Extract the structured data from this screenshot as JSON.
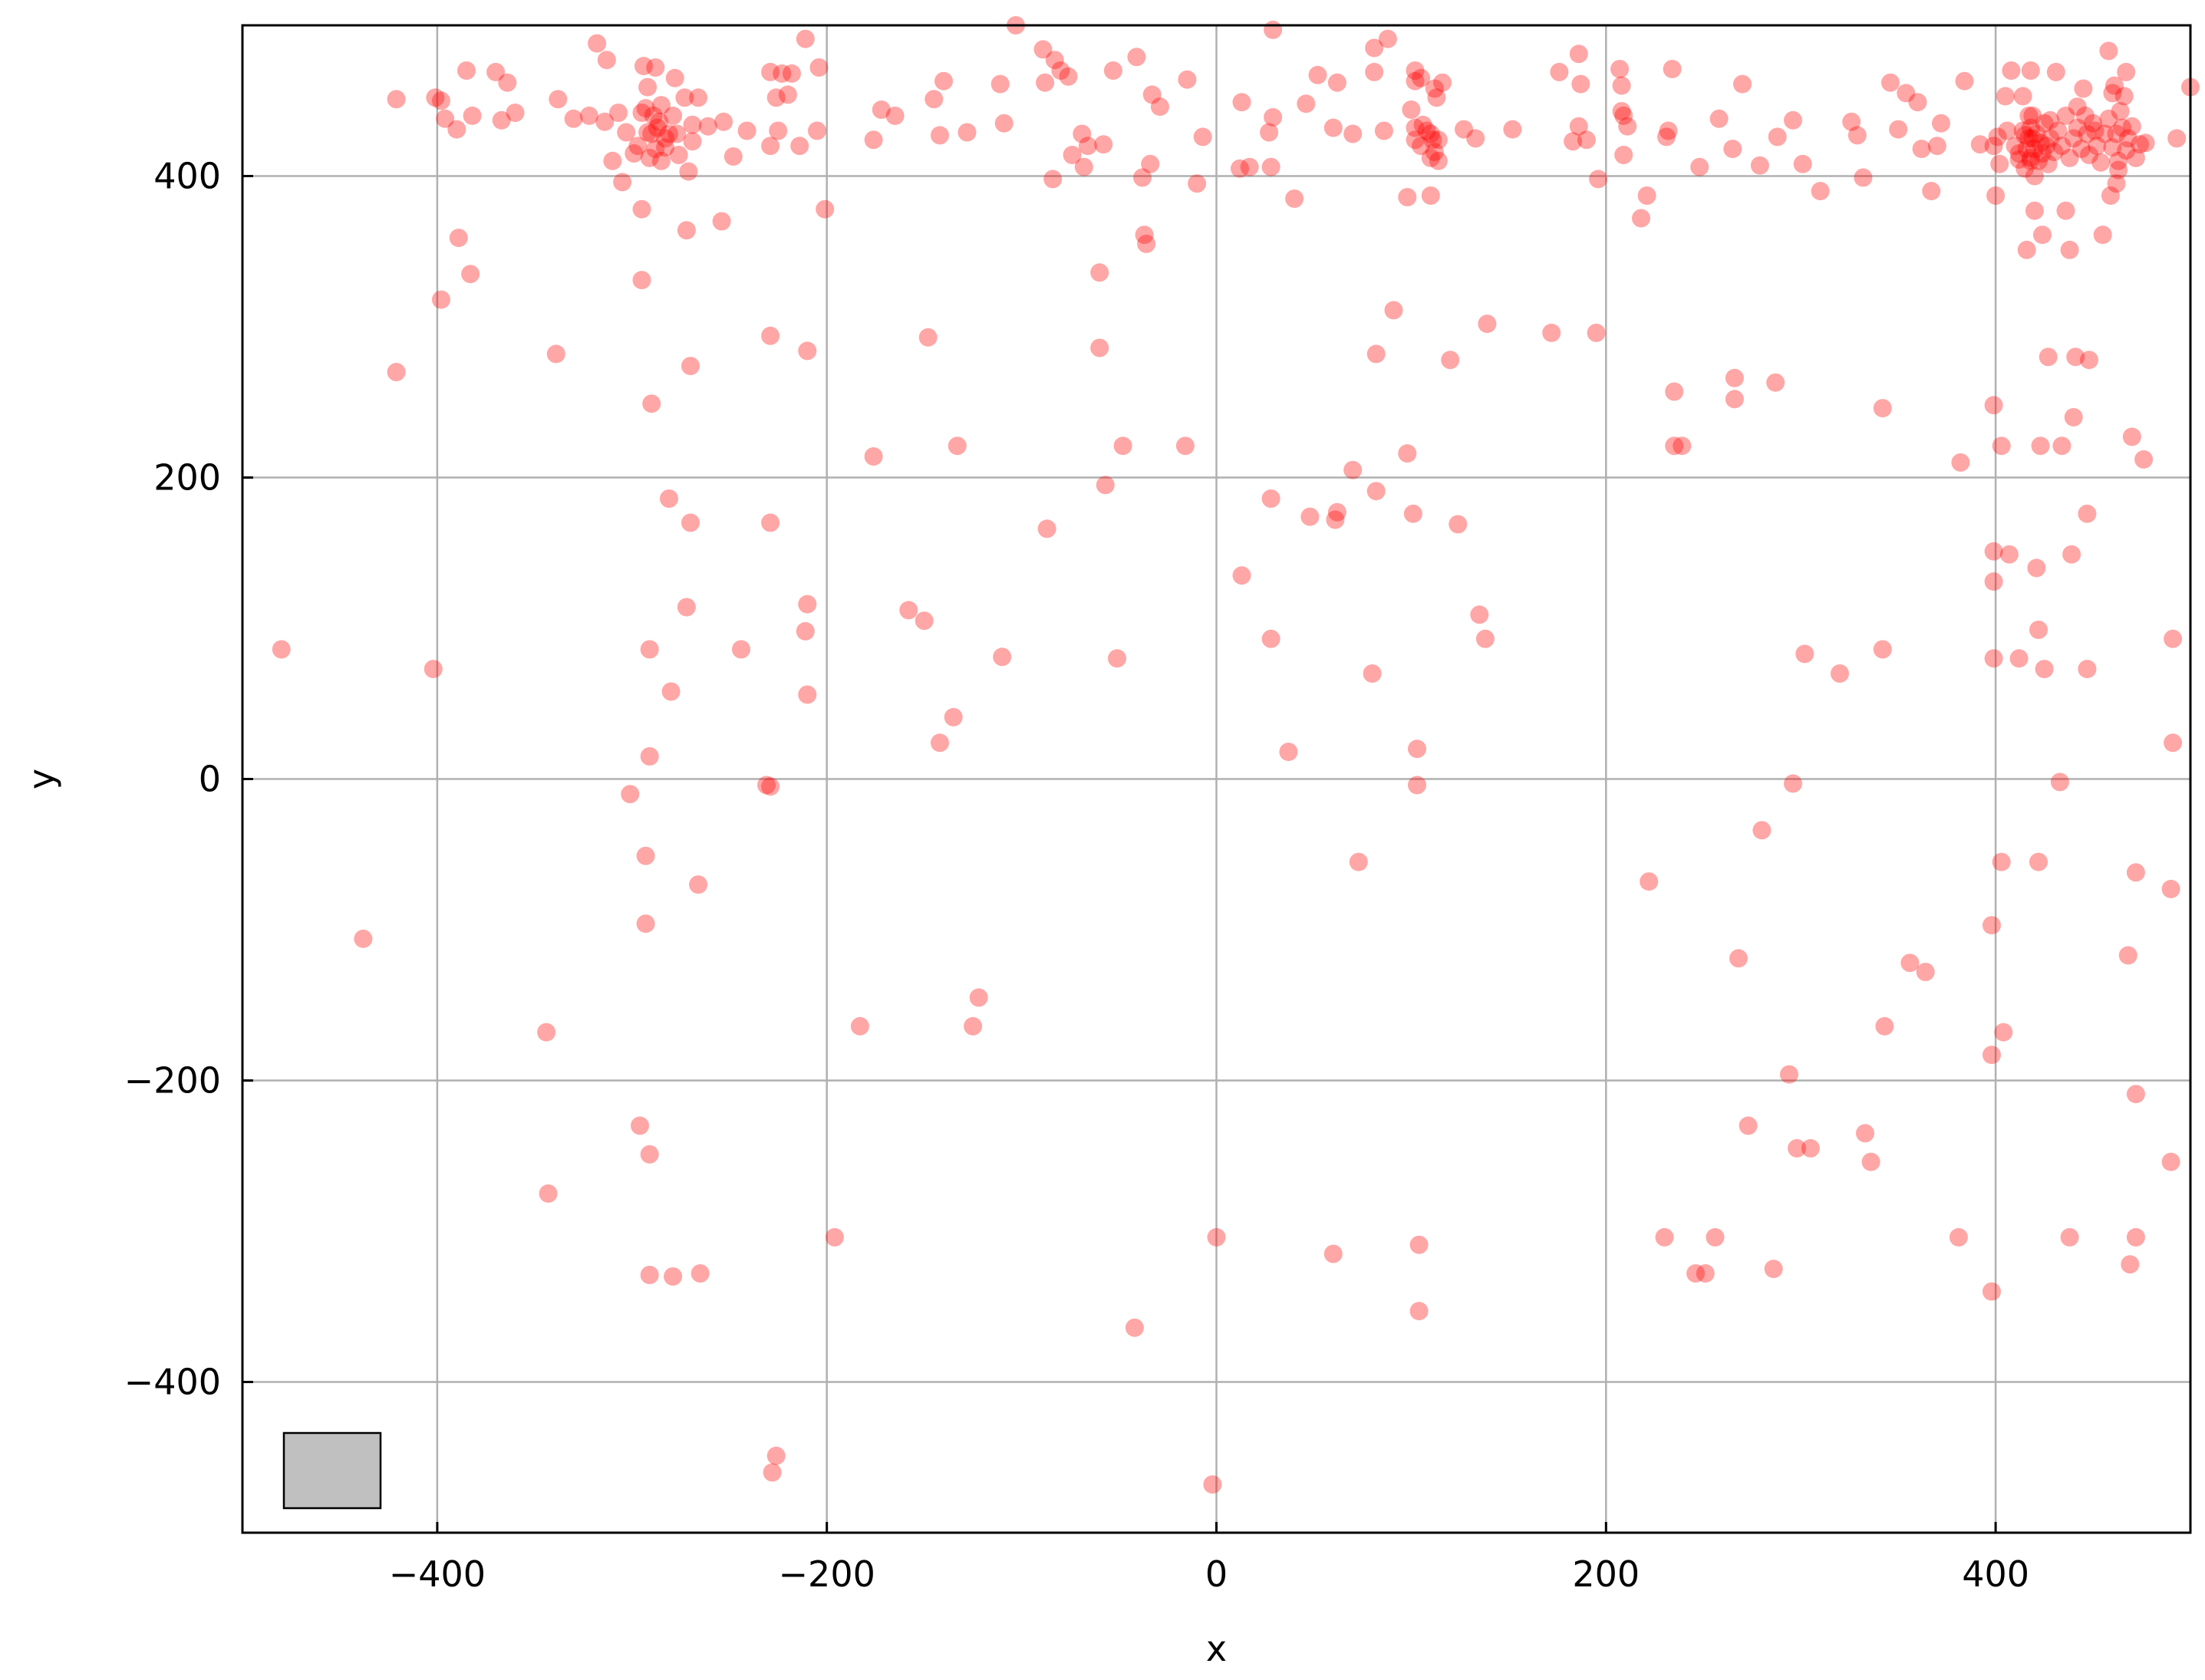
{
  "chart_data": {
    "type": "scatter",
    "xlabel": "x",
    "ylabel": "y",
    "xlim": [
      -500,
      500
    ],
    "ylim": [
      -500,
      500
    ],
    "xticks": [
      -400,
      -200,
      0,
      200,
      400
    ],
    "yticks": [
      -400,
      -200,
      0,
      200,
      400
    ],
    "xtick_labels": [
      "−400",
      "−200",
      "0",
      "200",
      "400"
    ],
    "ytick_labels": [
      "−400",
      "−200",
      "0",
      "200",
      "400"
    ],
    "grid": true,
    "marker_color": "#ff0000",
    "marker_opacity": 0.35,
    "legend": "bottom-left",
    "legend_box_color": "#c0c0c0",
    "points": [
      [
        -480,
        86
      ],
      [
        -438,
        -106
      ],
      [
        -421,
        270
      ],
      [
        -421,
        451
      ],
      [
        -402,
        73
      ],
      [
        -401,
        452
      ],
      [
        -398,
        318
      ],
      [
        -398,
        450
      ],
      [
        -396,
        438
      ],
      [
        -390,
        431
      ],
      [
        -389,
        359
      ],
      [
        -385,
        470
      ],
      [
        -383,
        335
      ],
      [
        -382,
        440
      ],
      [
        -370,
        469
      ],
      [
        -367,
        437
      ],
      [
        -364,
        462
      ],
      [
        -360,
        442
      ],
      [
        -344,
        -168
      ],
      [
        -343,
        -275
      ],
      [
        -339,
        282
      ],
      [
        -338,
        451
      ],
      [
        -330,
        438
      ],
      [
        -322,
        440
      ],
      [
        -318,
        488
      ],
      [
        -314,
        436
      ],
      [
        -313,
        477
      ],
      [
        -310,
        410
      ],
      [
        -307,
        442
      ],
      [
        -305,
        396
      ],
      [
        -303,
        429
      ],
      [
        -301,
        -10
      ],
      [
        -299,
        415
      ],
      [
        -297,
        420
      ],
      [
        -295,
        378
      ],
      [
        -295,
        331
      ],
      [
        -295,
        442
      ],
      [
        -294,
        473
      ],
      [
        -293,
        -51
      ],
      [
        -293,
        -96
      ],
      [
        -292,
        459
      ],
      [
        -292,
        429
      ],
      [
        -291,
        86
      ],
      [
        -291,
        15
      ],
      [
        -291,
        -249
      ],
      [
        -291,
        -329
      ],
      [
        -290,
        249
      ],
      [
        -296,
        -230
      ],
      [
        -289,
        440
      ],
      [
        -288,
        472
      ],
      [
        -287,
        432
      ],
      [
        -285,
        410
      ],
      [
        -283,
        425
      ],
      [
        -281,
        186
      ],
      [
        -280,
        58
      ],
      [
        -279,
        -330
      ],
      [
        -278,
        465
      ],
      [
        -276,
        414
      ],
      [
        -273,
        452
      ],
      [
        -272,
        364
      ],
      [
        -272,
        114
      ],
      [
        -271,
        403
      ],
      [
        -270,
        170
      ],
      [
        -270,
        274
      ],
      [
        -269,
        434
      ],
      [
        -269,
        423
      ],
      [
        -266,
        452
      ],
      [
        -266,
        -70
      ],
      [
        -265,
        -328
      ],
      [
        -261,
        433
      ],
      [
        -254,
        370
      ],
      [
        -253,
        436
      ],
      [
        -248,
        413
      ],
      [
        -244,
        86
      ],
      [
        -241,
        430
      ],
      [
        -231,
        -4
      ],
      [
        -229,
        -5
      ],
      [
        -229,
        294
      ],
      [
        -229,
        170
      ],
      [
        -229,
        420
      ],
      [
        -229,
        469
      ],
      [
        -228,
        -460
      ],
      [
        -226,
        -449
      ],
      [
        -226,
        452
      ],
      [
        -225,
        430
      ],
      [
        -223,
        468
      ],
      [
        -220,
        454
      ],
      [
        -218,
        468
      ],
      [
        -214,
        420
      ],
      [
        -211,
        98
      ],
      [
        -210,
        116
      ],
      [
        -210,
        56
      ],
      [
        -210,
        284
      ],
      [
        -211,
        491
      ],
      [
        -205,
        430
      ],
      [
        -204,
        472
      ],
      [
        -201,
        378
      ],
      [
        -196,
        -304
      ],
      [
        -183,
        -164
      ],
      [
        -176,
        424
      ],
      [
        -176,
        214
      ],
      [
        -172,
        444
      ],
      [
        -165,
        440
      ],
      [
        -158,
        112
      ],
      [
        -150,
        105
      ],
      [
        -148,
        293
      ],
      [
        -145,
        451
      ],
      [
        -142,
        24
      ],
      [
        -142,
        427
      ],
      [
        -140,
        463
      ],
      [
        -135,
        41
      ],
      [
        -133,
        221
      ],
      [
        -128,
        429
      ],
      [
        -125,
        -164
      ],
      [
        -122,
        -145
      ],
      [
        -110,
        81
      ],
      [
        -111,
        461
      ],
      [
        -109,
        435
      ],
      [
        -103,
        500
      ],
      [
        -89,
        484
      ],
      [
        -88,
        462
      ],
      [
        -87,
        166
      ],
      [
        -84,
        398
      ],
      [
        -83,
        477
      ],
      [
        -80,
        470
      ],
      [
        -76,
        466
      ],
      [
        -74,
        414
      ],
      [
        -69,
        428
      ],
      [
        -68,
        406
      ],
      [
        -66,
        420
      ],
      [
        -60,
        336
      ],
      [
        -60,
        286
      ],
      [
        -58,
        421
      ],
      [
        -57,
        195
      ],
      [
        -53,
        470
      ],
      [
        -51,
        80
      ],
      [
        -48,
        221
      ],
      [
        -42,
        -364
      ],
      [
        -41,
        479
      ],
      [
        -38,
        399
      ],
      [
        -37,
        361
      ],
      [
        -36,
        355
      ],
      [
        -34,
        408
      ],
      [
        -33,
        454
      ],
      [
        -29,
        446
      ],
      [
        -16,
        221
      ],
      [
        -15,
        464
      ],
      [
        -10,
        395
      ],
      [
        -7,
        426
      ],
      [
        -2,
        -468
      ],
      [
        0,
        -304
      ],
      [
        12,
        405
      ],
      [
        13,
        135
      ],
      [
        13,
        449
      ],
      [
        17,
        406
      ],
      [
        27,
        429
      ],
      [
        28,
        186
      ],
      [
        28,
        93
      ],
      [
        28,
        406
      ],
      [
        29,
        439
      ],
      [
        29,
        497
      ],
      [
        37,
        18
      ],
      [
        40,
        385
      ],
      [
        46,
        448
      ],
      [
        48,
        174
      ],
      [
        52,
        467
      ],
      [
        60,
        -315
      ],
      [
        60,
        432
      ],
      [
        62,
        462
      ],
      [
        61,
        172
      ],
      [
        62,
        177
      ],
      [
        70,
        428
      ],
      [
        70,
        205
      ],
      [
        73,
        -55
      ],
      [
        80,
        70
      ],
      [
        81,
        485
      ],
      [
        81,
        469
      ],
      [
        82,
        282
      ],
      [
        82,
        191
      ],
      [
        86,
        430
      ],
      [
        88,
        491
      ],
      [
        91,
        311
      ],
      [
        98,
        216
      ],
      [
        98,
        386
      ],
      [
        101,
        176
      ],
      [
        102,
        432
      ],
      [
        102,
        470
      ],
      [
        102,
        424
      ],
      [
        102,
        463
      ],
      [
        103,
        20
      ],
      [
        103,
        -4
      ],
      [
        104,
        -309
      ],
      [
        104,
        -353
      ],
      [
        105,
        465
      ],
      [
        106,
        434
      ],
      [
        108,
        430
      ],
      [
        110,
        387
      ],
      [
        110,
        412
      ],
      [
        111,
        424
      ],
      [
        112,
        458
      ],
      [
        113,
        452
      ],
      [
        114,
        410
      ],
      [
        114,
        424
      ],
      [
        116,
        462
      ],
      [
        120,
        278
      ],
      [
        124,
        169
      ],
      [
        127,
        431
      ],
      [
        133,
        425
      ],
      [
        135,
        109
      ],
      [
        138,
        93
      ],
      [
        139,
        302
      ],
      [
        152,
        431
      ],
      [
        172,
        296
      ],
      [
        176,
        469
      ],
      [
        183,
        423
      ],
      [
        186,
        433
      ],
      [
        186,
        481
      ],
      [
        187,
        461
      ],
      [
        190,
        424
      ],
      [
        195,
        296
      ],
      [
        196,
        398
      ],
      [
        207,
        471
      ],
      [
        208,
        443
      ],
      [
        208,
        460
      ],
      [
        209,
        440
      ],
      [
        209,
        414
      ],
      [
        211,
        433
      ],
      [
        218,
        372
      ],
      [
        221,
        387
      ],
      [
        222,
        -68
      ],
      [
        230,
        -304
      ],
      [
        231,
        426
      ],
      [
        232,
        430
      ],
      [
        234,
        471
      ],
      [
        235,
        257
      ],
      [
        235,
        221
      ],
      [
        239,
        221
      ],
      [
        246,
        -328
      ],
      [
        248,
        406
      ],
      [
        251,
        -328
      ],
      [
        256,
        -304
      ],
      [
        258,
        438
      ],
      [
        265,
        418
      ],
      [
        266,
        266
      ],
      [
        266,
        252
      ],
      [
        268,
        -119
      ],
      [
        270,
        461
      ],
      [
        273,
        -230
      ],
      [
        279,
        407
      ],
      [
        280,
        -34
      ],
      [
        286,
        -325
      ],
      [
        287,
        263
      ],
      [
        288,
        426
      ],
      [
        294,
        -196
      ],
      [
        296,
        -3
      ],
      [
        296,
        437
      ],
      [
        298,
        -245
      ],
      [
        301,
        408
      ],
      [
        302,
        83
      ],
      [
        305,
        -245
      ],
      [
        310,
        390
      ],
      [
        320,
        70
      ],
      [
        326,
        436
      ],
      [
        329,
        427
      ],
      [
        332,
        399
      ],
      [
        333,
        -235
      ],
      [
        336,
        -254
      ],
      [
        342,
        86
      ],
      [
        342,
        246
      ],
      [
        343,
        -164
      ],
      [
        346,
        462
      ],
      [
        350,
        431
      ],
      [
        354,
        455
      ],
      [
        356,
        -122
      ],
      [
        360,
        449
      ],
      [
        362,
        418
      ],
      [
        364,
        -128
      ],
      [
        367,
        390
      ],
      [
        370,
        420
      ],
      [
        372,
        435
      ],
      [
        381,
        -304
      ],
      [
        382,
        210
      ],
      [
        384,
        463
      ],
      [
        392,
        421
      ],
      [
        398,
        -340
      ],
      [
        398,
        -183
      ],
      [
        398,
        -97
      ],
      [
        399,
        80
      ],
      [
        399,
        131
      ],
      [
        399,
        151
      ],
      [
        399,
        248
      ],
      [
        399,
        420
      ],
      [
        400,
        387
      ],
      [
        401,
        426
      ],
      [
        402,
        408
      ],
      [
        403,
        -55
      ],
      [
        403,
        221
      ],
      [
        404,
        -168
      ],
      [
        405,
        453
      ],
      [
        406,
        430
      ],
      [
        407,
        149
      ],
      [
        408,
        470
      ],
      [
        412,
        80
      ],
      [
        412,
        411
      ],
      [
        414,
        453
      ],
      [
        415,
        427
      ],
      [
        416,
        351
      ],
      [
        417,
        440
      ],
      [
        418,
        470
      ],
      [
        418,
        410
      ],
      [
        419,
        425
      ],
      [
        420,
        377
      ],
      [
        421,
        140
      ],
      [
        422,
        99
      ],
      [
        422,
        -55
      ],
      [
        423,
        221
      ],
      [
        424,
        361
      ],
      [
        425,
        73
      ],
      [
        427,
        280
      ],
      [
        428,
        437
      ],
      [
        431,
        469
      ],
      [
        433,
        -2
      ],
      [
        434,
        221
      ],
      [
        436,
        377
      ],
      [
        438,
        351
      ],
      [
        438,
        -304
      ],
      [
        439,
        149
      ],
      [
        440,
        240
      ],
      [
        441,
        280
      ],
      [
        442,
        446
      ],
      [
        447,
        176
      ],
      [
        447,
        73
      ],
      [
        448,
        278
      ],
      [
        451,
        430
      ],
      [
        455,
        361
      ],
      [
        458,
        483
      ],
      [
        459,
        387
      ],
      [
        460,
        455
      ],
      [
        461,
        460
      ],
      [
        462,
        395
      ],
      [
        463,
        410
      ],
      [
        466,
        453
      ],
      [
        467,
        469
      ],
      [
        468,
        -117
      ],
      [
        469,
        -322
      ],
      [
        470,
        227
      ],
      [
        472,
        -304
      ],
      [
        472,
        -62
      ],
      [
        472,
        -209
      ],
      [
        476,
        212
      ],
      [
        477,
        422
      ],
      [
        490,
        -73
      ],
      [
        490,
        -254
      ],
      [
        491,
        24
      ],
      [
        491,
        93
      ],
      [
        493,
        425
      ],
      [
        500,
        459
      ],
      [
        410,
        420
      ],
      [
        412,
        415
      ],
      [
        414,
        430
      ],
      [
        415,
        405
      ],
      [
        416,
        418
      ],
      [
        417,
        425
      ],
      [
        418,
        412
      ],
      [
        418,
        432
      ],
      [
        419,
        440
      ],
      [
        420,
        418
      ],
      [
        420,
        400
      ],
      [
        421,
        428
      ],
      [
        422,
        410
      ],
      [
        423,
        422
      ],
      [
        424,
        415
      ],
      [
        425,
        435
      ],
      [
        426,
        420
      ],
      [
        427,
        408
      ],
      [
        428,
        425
      ],
      [
        430,
        416
      ],
      [
        432,
        430
      ],
      [
        434,
        420
      ],
      [
        436,
        440
      ],
      [
        438,
        412
      ],
      [
        440,
        425
      ],
      [
        442,
        432
      ],
      [
        444,
        418
      ],
      [
        445,
        458
      ],
      [
        446,
        440
      ],
      [
        447,
        428
      ],
      [
        448,
        414
      ],
      [
        450,
        435
      ],
      [
        452,
        420
      ],
      [
        454,
        409
      ],
      [
        456,
        428
      ],
      [
        458,
        438
      ],
      [
        460,
        419
      ],
      [
        462,
        428
      ],
      [
        463,
        404
      ],
      [
        464,
        443
      ],
      [
        465,
        432
      ],
      [
        467,
        417
      ],
      [
        468,
        425
      ],
      [
        470,
        433
      ],
      [
        472,
        412
      ],
      [
        474,
        421
      ],
      [
        -293,
        445
      ],
      [
        -291,
        412
      ],
      [
        -290,
        428
      ],
      [
        -288,
        418
      ],
      [
        -286,
        436
      ],
      [
        -285,
        447
      ],
      [
        -283,
        419
      ],
      [
        -281,
        428
      ],
      [
        -279,
        440
      ],
      [
        -277,
        428
      ],
      [
        100,
        444
      ],
      [
        105,
        420
      ],
      [
        110,
        428
      ],
      [
        112,
        416
      ]
    ]
  }
}
